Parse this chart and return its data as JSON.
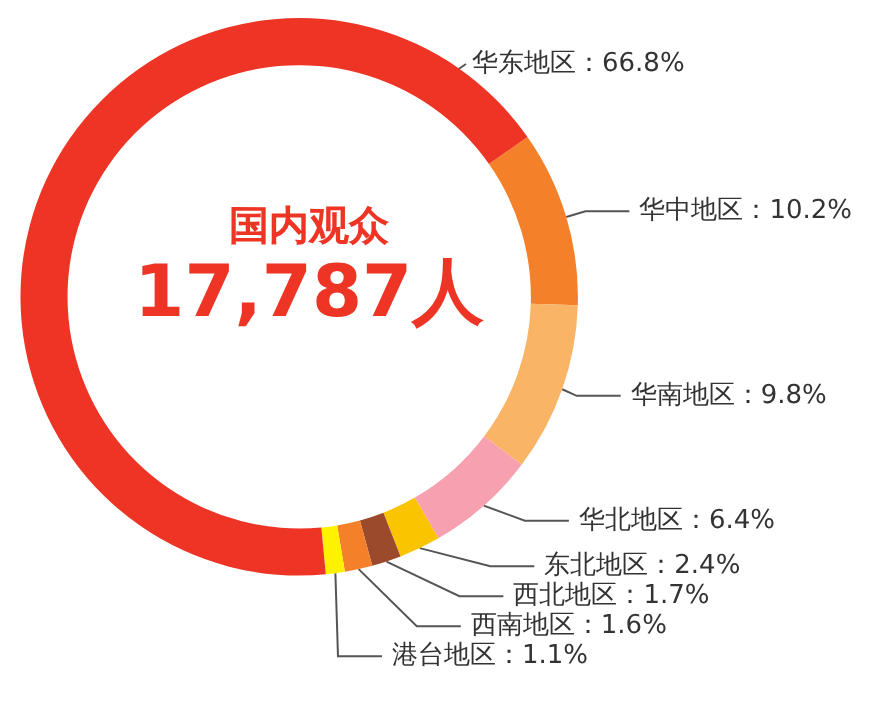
{
  "chart_data": {
    "type": "donut",
    "title": "国内观众",
    "subtitle": "17,787人",
    "categories": [
      "华中地区",
      "华南地区",
      "华北地区",
      "东北地区",
      "西北地区",
      "西南地区",
      "港台地区",
      "华东地区"
    ],
    "values": [
      10.2,
      9.8,
      6.4,
      2.4,
      1.7,
      1.6,
      1.1,
      66.8
    ],
    "value_labels": [
      "10.2%",
      "9.8%",
      "6.4%",
      "2.4%",
      "1.7%",
      "1.6%",
      "1.1%",
      "66.8%"
    ],
    "colors": [
      "#f4802a",
      "#f9b465",
      "#f7a1b0",
      "#fbc400",
      "#9c4a2c",
      "#f4802a",
      "#fff200",
      "#ee3424"
    ],
    "legend": false
  }
}
